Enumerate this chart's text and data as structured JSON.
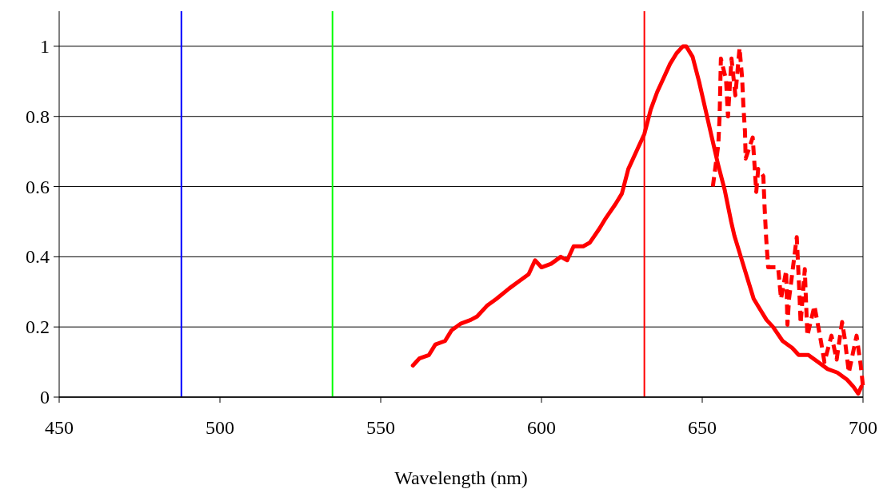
{
  "chart_data": {
    "type": "line",
    "xlabel": "Wavelength (nm)",
    "xlim": [
      450,
      700
    ],
    "xticks": [
      450,
      500,
      550,
      600,
      650,
      700
    ],
    "ylim": [
      0,
      1.1
    ],
    "yticks": [
      0,
      0.2,
      0.4,
      0.6,
      0.8,
      1
    ],
    "grid": "y",
    "marker": "none",
    "ref_lines": [
      {
        "axis": "x",
        "value": 488,
        "color": "#0000ff"
      },
      {
        "axis": "x",
        "value": 535,
        "color": "#00ff00"
      },
      {
        "axis": "x",
        "value": 632,
        "color": "#ff0000"
      }
    ],
    "series": [
      {
        "color": "#ff0000",
        "line_style": "solid",
        "x": [
          560,
          562,
          565,
          567,
          570,
          572,
          575,
          578,
          580,
          583,
          586,
          590,
          593,
          596,
          598,
          600,
          603,
          606,
          608,
          610,
          613,
          615,
          618,
          620,
          623,
          625,
          627,
          630,
          632,
          634,
          636,
          638,
          640,
          642,
          644,
          645,
          647,
          649,
          651,
          653,
          655,
          657,
          659,
          660,
          662,
          664,
          666,
          668,
          670,
          672,
          675,
          678,
          680,
          683,
          686,
          689,
          692,
          695,
          697,
          698.5,
          699.5
        ],
        "values": [
          0.09,
          0.11,
          0.12,
          0.15,
          0.16,
          0.19,
          0.21,
          0.22,
          0.23,
          0.26,
          0.28,
          0.31,
          0.33,
          0.35,
          0.39,
          0.37,
          0.38,
          0.4,
          0.39,
          0.43,
          0.43,
          0.44,
          0.48,
          0.51,
          0.55,
          0.58,
          0.65,
          0.71,
          0.75,
          0.82,
          0.87,
          0.91,
          0.95,
          0.98,
          1.0,
          1.0,
          0.97,
          0.9,
          0.82,
          0.74,
          0.66,
          0.59,
          0.5,
          0.46,
          0.4,
          0.34,
          0.28,
          0.25,
          0.22,
          0.2,
          0.16,
          0.14,
          0.12,
          0.12,
          0.1,
          0.08,
          0.07,
          0.05,
          0.03,
          0.01,
          0.03
        ]
      },
      {
        "color": "#ff0000",
        "line_style": "dashed",
        "x": [
          653.3,
          655,
          655.4,
          655.8,
          657.4,
          658,
          659.1,
          660.3,
          661.6,
          662.4,
          662.8,
          663.3,
          663.5,
          665.7,
          666.8,
          667.4,
          669,
          669.4,
          669.9,
          670.5,
          673.6,
          674.5,
          676.1,
          676.5,
          677,
          679.4,
          680.2,
          680.6,
          681.9,
          682.2,
          682.7,
          684.9,
          686.9,
          688,
          690.2,
          691.8,
          693.5,
          694.3,
          695.6,
          698,
          699.3,
          700
        ],
        "values": [
          0.6,
          0.72,
          0.8,
          0.965,
          0.905,
          0.8,
          0.965,
          0.86,
          0.995,
          0.91,
          0.83,
          0.756,
          0.68,
          0.74,
          0.585,
          0.65,
          0.63,
          0.54,
          0.45,
          0.37,
          0.37,
          0.28,
          0.36,
          0.206,
          0.28,
          0.456,
          0.3,
          0.21,
          0.365,
          0.29,
          0.175,
          0.26,
          0.16,
          0.1,
          0.175,
          0.107,
          0.214,
          0.168,
          0.07,
          0.175,
          0.09,
          0.03
        ]
      }
    ]
  }
}
